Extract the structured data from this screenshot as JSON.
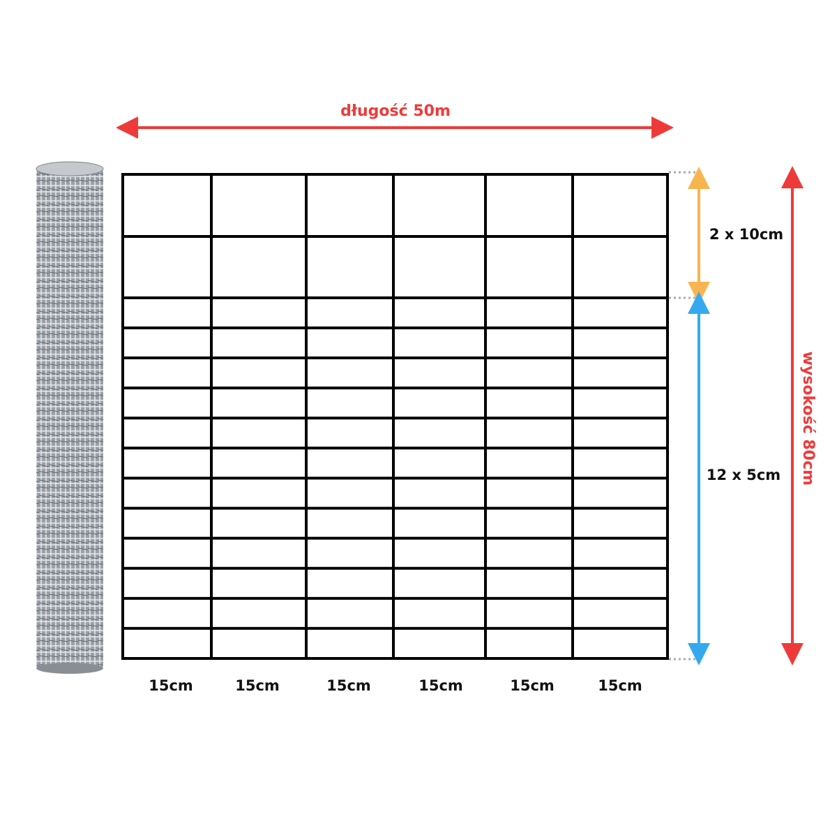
{
  "length_label": "długość 50m",
  "height_label": "wysokość 80cm",
  "top_section_label": "2 x 10cm",
  "bottom_section_label": "12 x 5cm",
  "column_labels": [
    "15cm",
    "15cm",
    "15cm",
    "15cm",
    "15cm",
    "15cm"
  ],
  "colors": {
    "length_arrow": "#ef3a3a",
    "height_arrow": "#ef3a3a",
    "top_section_arrow": "#f8b54f",
    "bottom_section_arrow": "#35a9ef",
    "grid": "#000000"
  },
  "icons": {
    "roll": "wire-fence-roll"
  }
}
